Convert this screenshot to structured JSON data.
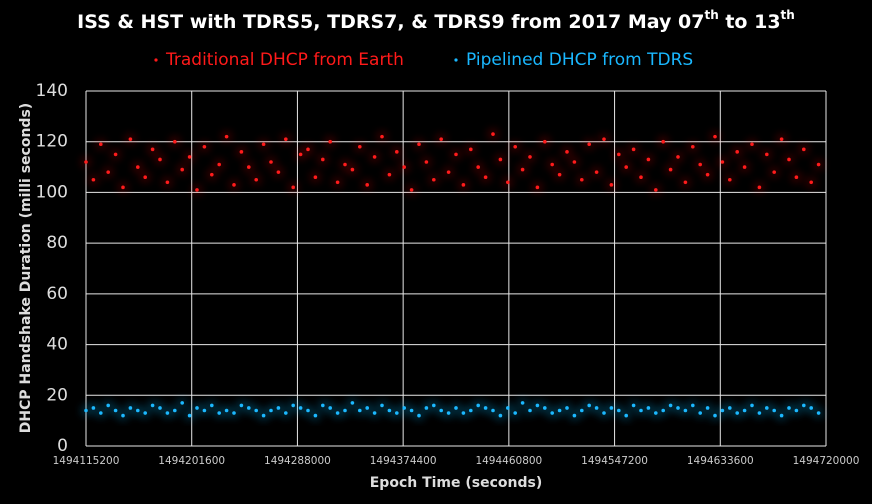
{
  "chart_data": {
    "type": "scatter",
    "title": [
      "ISS & HST with TDRS5, TDRS7, & TDRS9 from 2017 May 07",
      "th",
      " to 13",
      "th"
    ],
    "x_label": "Epoch Time (seconds)",
    "y_label": "DHCP Handshake Duration (milli seconds)",
    "xlim": [
      1494115200,
      1494720000
    ],
    "xticks": [
      1494115200,
      1494201600,
      1494288000,
      1494374400,
      1494460800,
      1494547200,
      1494633600,
      1494720000
    ],
    "ylim": [
      0,
      140
    ],
    "yticks": [
      0,
      20,
      40,
      60,
      80,
      100,
      120,
      140
    ],
    "grid": true,
    "legend": "top",
    "x": [
      1494115200,
      1494121248,
      1494127296,
      1494133344,
      1494139392,
      1494145440,
      1494151488,
      1494157536,
      1494163584,
      1494169632,
      1494175680,
      1494181728,
      1494187776,
      1494193824,
      1494199872,
      1494205920,
      1494211968,
      1494218016,
      1494224064,
      1494230112,
      1494236160,
      1494242208,
      1494248256,
      1494254304,
      1494260352,
      1494266400,
      1494272448,
      1494278496,
      1494284544,
      1494290592,
      1494296640,
      1494302688,
      1494308736,
      1494314784,
      1494320832,
      1494326880,
      1494332928,
      1494338976,
      1494345024,
      1494351072,
      1494357120,
      1494363168,
      1494369216,
      1494375264,
      1494381312,
      1494387360,
      1494393408,
      1494399456,
      1494405504,
      1494411552,
      1494417600,
      1494423648,
      1494429696,
      1494435744,
      1494441792,
      1494447840,
      1494453888,
      1494459936,
      1494465984,
      1494472032,
      1494478080,
      1494484128,
      1494490176,
      1494496224,
      1494502272,
      1494508320,
      1494514368,
      1494520416,
      1494526464,
      1494532512,
      1494538560,
      1494544608,
      1494550656,
      1494556704,
      1494562752,
      1494568800,
      1494574848,
      1494580896,
      1494586944,
      1494592992,
      1494599040,
      1494605088,
      1494611136,
      1494617184,
      1494623232,
      1494629280,
      1494635328,
      1494641376,
      1494647424,
      1494653472,
      1494659520,
      1494665568,
      1494671616,
      1494677664,
      1494683712,
      1494689760,
      1494695808,
      1494701856,
      1494707904,
      1494713952
    ],
    "series": [
      {
        "name": "Traditional DHCP from Earth",
        "color": "#ff1a1a",
        "values": [
          112,
          105,
          119,
          108,
          115,
          102,
          121,
          110,
          106,
          117,
          113,
          104,
          120,
          109,
          114,
          101,
          118,
          107,
          111,
          122,
          103,
          116,
          110,
          105,
          119,
          112,
          108,
          121,
          102,
          115,
          117,
          106,
          113,
          120,
          104,
          111,
          109,
          118,
          103,
          114,
          122,
          107,
          116,
          110,
          101,
          119,
          112,
          105,
          121,
          108,
          115,
          103,
          117,
          110,
          106,
          123,
          113,
          104,
          118,
          109,
          114,
          102,
          120,
          111,
          107,
          116,
          112,
          105,
          119,
          108,
          121,
          103,
          115,
          110,
          117,
          106,
          113,
          101,
          120,
          109,
          114,
          104,
          118,
          111,
          107,
          122,
          112,
          105,
          116,
          110,
          119,
          102,
          115,
          108,
          121,
          113,
          106,
          117,
          104,
          111
        ]
      },
      {
        "name": "Pipelined DHCP from TDRS",
        "color": "#1ab8ff",
        "values": [
          14,
          15,
          13,
          16,
          14,
          12,
          15,
          14,
          13,
          16,
          15,
          13,
          14,
          17,
          12,
          15,
          14,
          16,
          13,
          14,
          13,
          16,
          15,
          14,
          12,
          14,
          15,
          13,
          16,
          15,
          14,
          12,
          16,
          15,
          13,
          14,
          17,
          14,
          15,
          13,
          16,
          14,
          13,
          15,
          14,
          12,
          15,
          16,
          14,
          13,
          15,
          13,
          14,
          16,
          15,
          14,
          12,
          15,
          13,
          17,
          14,
          16,
          15,
          13,
          14,
          15,
          12,
          14,
          16,
          15,
          13,
          15,
          14,
          12,
          16,
          14,
          15,
          13,
          14,
          16,
          15,
          14,
          16,
          13,
          15,
          12,
          14,
          15,
          13,
          14,
          16,
          13,
          15,
          14,
          12,
          15,
          14,
          16,
          15,
          13
        ]
      }
    ]
  }
}
